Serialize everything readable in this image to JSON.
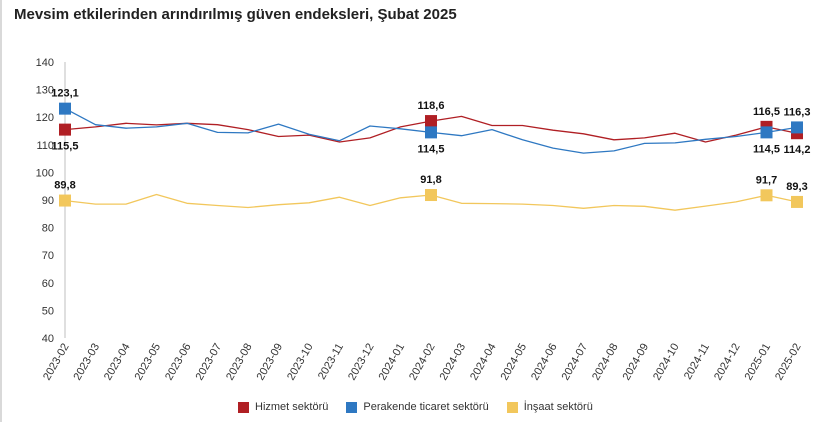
{
  "chart_data": {
    "type": "line",
    "title": "Mevsim etkilerinden arındırılmış güven endeksleri, Şubat 2025",
    "xlabel": "",
    "ylabel": "",
    "ylim": [
      40,
      140
    ],
    "yticks": [
      "40",
      "50",
      "60",
      "70",
      "80",
      "90",
      "100",
      "110",
      "120",
      "130",
      "140"
    ],
    "categories": [
      "2023-02",
      "2023-03",
      "2023-04",
      "2023-05",
      "2023-06",
      "2023-07",
      "2023-08",
      "2023-09",
      "2023-10",
      "2023-11",
      "2023-12",
      "2024-01",
      "2024-02",
      "2024-03",
      "2024-04",
      "2024-05",
      "2024-06",
      "2024-07",
      "2024-08",
      "2024-09",
      "2024-10",
      "2024-11",
      "2024-12",
      "2025-01",
      "2025-02"
    ],
    "series": [
      {
        "name": "Hizmet sektörü",
        "color": "#b01f24",
        "values": [
          115.5,
          116.5,
          117.8,
          117.2,
          117.8,
          117.3,
          115.5,
          113.0,
          113.5,
          111.0,
          112.5,
          116.5,
          118.6,
          120.3,
          117.0,
          117.0,
          115.3,
          114.0,
          111.8,
          112.5,
          114.2,
          111.0,
          113.5,
          116.5,
          114.2
        ]
      },
      {
        "name": "Perakende ticaret sektörü",
        "color": "#2e78c2",
        "values": [
          123.1,
          117.3,
          116.0,
          116.5,
          117.8,
          114.5,
          114.3,
          117.5,
          113.8,
          111.5,
          116.8,
          115.8,
          114.5,
          113.3,
          115.5,
          111.8,
          108.8,
          107.0,
          107.8,
          110.5,
          110.7,
          112.0,
          113.0,
          114.5,
          116.3
        ]
      },
      {
        "name": "İnşaat sektörü",
        "color": "#f2c75c",
        "values": [
          89.8,
          88.5,
          88.5,
          92.0,
          88.8,
          88.0,
          87.3,
          88.3,
          89.0,
          91.0,
          88.0,
          90.8,
          91.8,
          88.8,
          88.7,
          88.5,
          88.0,
          87.0,
          88.0,
          87.7,
          86.3,
          87.8,
          89.3,
          91.7,
          89.3
        ]
      }
    ],
    "markers": [
      {
        "series": 0,
        "index": 0,
        "label": "115,5",
        "pos": "below"
      },
      {
        "series": 1,
        "index": 0,
        "label": "123,1",
        "pos": "above"
      },
      {
        "series": 2,
        "index": 0,
        "label": "89,8",
        "pos": "above"
      },
      {
        "series": 0,
        "index": 12,
        "label": "118,6",
        "pos": "above"
      },
      {
        "series": 1,
        "index": 12,
        "label": "114,5",
        "pos": "below"
      },
      {
        "series": 2,
        "index": 12,
        "label": "91,8",
        "pos": "above"
      },
      {
        "series": 0,
        "index": 23,
        "label": "116,5",
        "pos": "above"
      },
      {
        "series": 1,
        "index": 23,
        "label": "114,5",
        "pos": "below"
      },
      {
        "series": 2,
        "index": 23,
        "label": "91,7",
        "pos": "above"
      },
      {
        "series": 0,
        "index": 24,
        "label": "114,2",
        "pos": "below"
      },
      {
        "series": 1,
        "index": 24,
        "label": "116,3",
        "pos": "above"
      },
      {
        "series": 2,
        "index": 24,
        "label": "89,3",
        "pos": "above"
      }
    ],
    "legend": [
      "Hizmet sektörü",
      "Perakende ticaret sektörü",
      "İnşaat sektörü"
    ]
  }
}
